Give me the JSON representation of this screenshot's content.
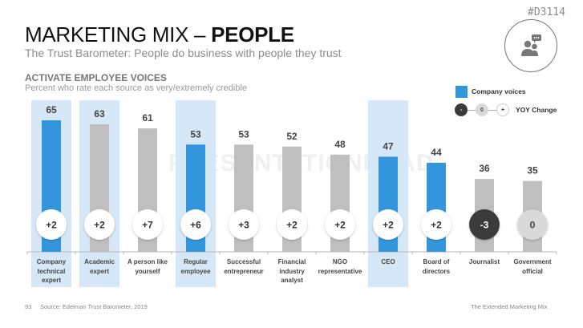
{
  "doc_code": "#D3114",
  "header": {
    "title_regular": "MARKETING MIX – ",
    "title_bold": "PEOPLE",
    "subtitle": "The Trust Barometer: People do business with people they trust",
    "section_heading": "ACTIVATE EMPLOYEE VOICES",
    "section_sub": "Percent who rate each source as very/extremely credible",
    "icon": "people-chat-icon"
  },
  "legend": {
    "company_voices": "Company voices",
    "yoy_change": "YOY Change",
    "dot_minus": "-",
    "dot_zero": "0",
    "dot_plus": "+"
  },
  "colors": {
    "company": "#3396dc",
    "other": "#bfbfbf",
    "highlight_bg": "#d6e8f7",
    "negative_dot": "#3a3a3a",
    "zero_dot": "#d9d9d9",
    "positive_dot": "#ffffff"
  },
  "watermark": "PRESENTATIONLOAD",
  "chart_data": {
    "type": "bar",
    "title": "ACTIVATE EMPLOYEE VOICES",
    "subtitle": "Percent who rate each source as very/extremely credible",
    "xlabel": "",
    "ylabel": "",
    "ylim": [
      0,
      70
    ],
    "grid": false,
    "legend_position": "top-right",
    "categories": [
      "Company technical expert",
      "Academic expert",
      "A person like yourself",
      "Regular employee",
      "Successful entrepreneur",
      "Financial industry analyst",
      "NGO representative",
      "CEO",
      "Board of directors",
      "Journalist",
      "Government official"
    ],
    "category_lines": [
      [
        "Company",
        "technical",
        "expert"
      ],
      [
        "Academic",
        "expert"
      ],
      [
        "A person like",
        "yourself"
      ],
      [
        "Regular",
        "employee"
      ],
      [
        "Successful",
        "entrepreneur"
      ],
      [
        "Financial",
        "industry",
        "analyst"
      ],
      [
        "NGO",
        "representative"
      ],
      [
        "CEO"
      ],
      [
        "Board of",
        "directors"
      ],
      [
        "Journalist"
      ],
      [
        "Government",
        "official"
      ]
    ],
    "values": [
      65,
      63,
      61,
      53,
      53,
      52,
      48,
      47,
      44,
      36,
      35
    ],
    "yoy_change": [
      "+2",
      "+2",
      "+7",
      "+6",
      "+3",
      "+2",
      "+2",
      "+2",
      "+2",
      "-3",
      "0"
    ],
    "company_voice": [
      true,
      false,
      false,
      true,
      false,
      false,
      false,
      true,
      true,
      false,
      false
    ],
    "highlighted": [
      true,
      true,
      false,
      true,
      false,
      false,
      false,
      true,
      false,
      false,
      false
    ]
  },
  "footer": {
    "page_number": "93",
    "source": "Source: Edelman Trust Barometer, 2019",
    "right": "The Extended Marketing Mix"
  }
}
